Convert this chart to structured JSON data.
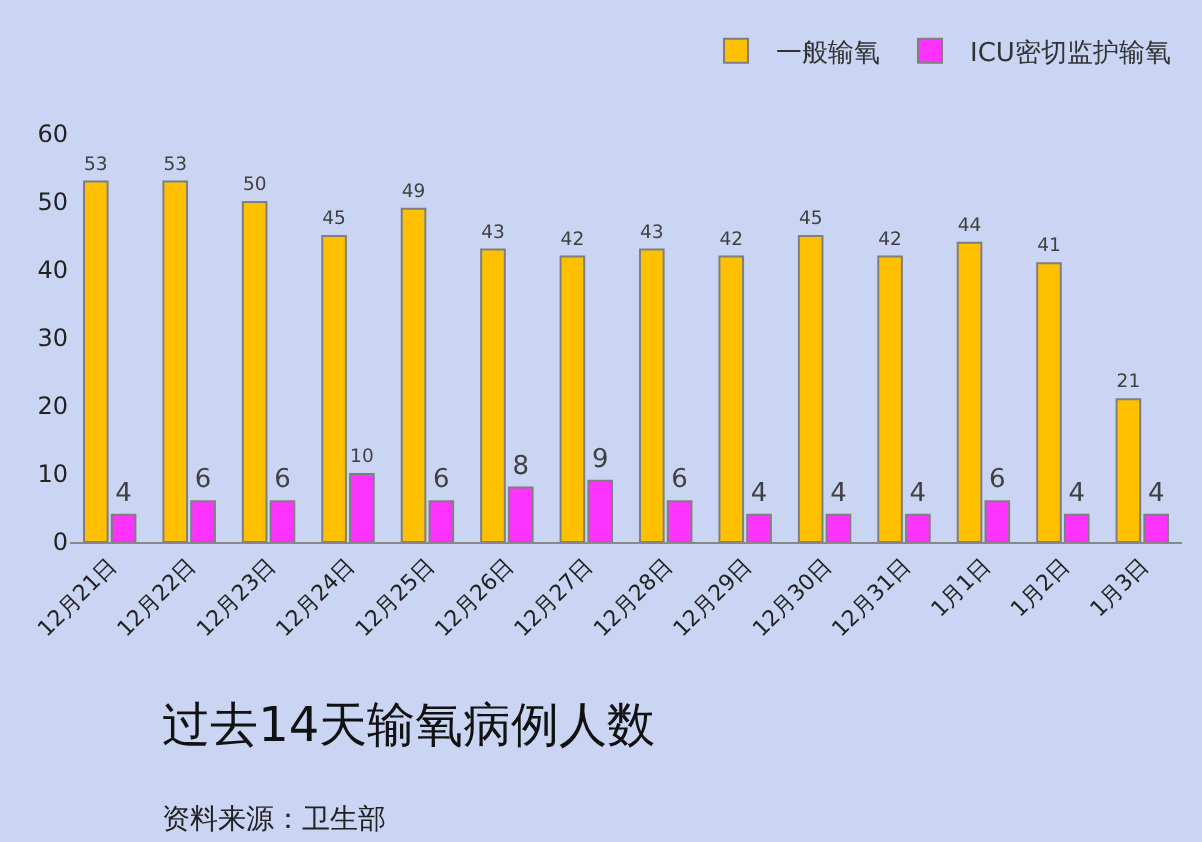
{
  "chart_data": {
    "type": "bar",
    "title": "过去14天输氧病例人数",
    "annotations": [
      "资料来源：卫生部"
    ],
    "categories": [
      "12月21日",
      "12月22日",
      "12月23日",
      "12月24日",
      "12月25日",
      "12月26日",
      "12月27日",
      "12月28日",
      "12月29日",
      "12月30日",
      "12月31日",
      "1月1日",
      "1月2日",
      "1月3日"
    ],
    "series": [
      {
        "name": "一般输氧",
        "color": "#ffc000",
        "values": [
          53,
          53,
          50,
          45,
          49,
          43,
          42,
          43,
          42,
          45,
          42,
          44,
          41,
          21
        ]
      },
      {
        "name": "ICU密切监护输氧",
        "color": "#ff33ff",
        "values": [
          4,
          6,
          6,
          10,
          6,
          8,
          9,
          6,
          4,
          4,
          4,
          6,
          4,
          4
        ]
      }
    ],
    "ylim": [
      0,
      60
    ],
    "yticks": [
      0,
      10,
      20,
      30,
      40,
      50,
      60
    ],
    "grid": false,
    "legend": "top right",
    "data_labels": true
  }
}
